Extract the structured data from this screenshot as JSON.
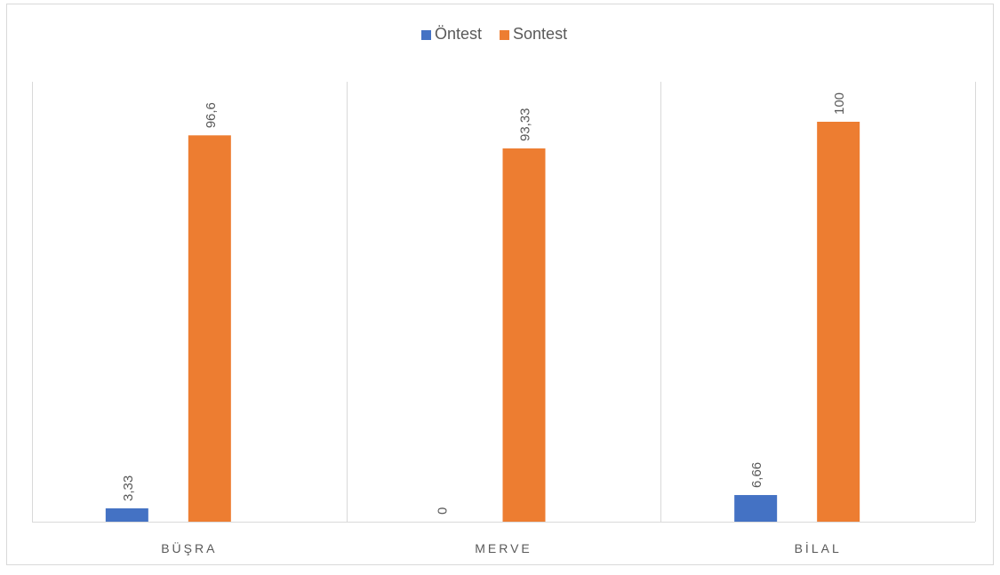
{
  "chart_data": {
    "type": "bar",
    "categories": [
      "BÜŞRA",
      "MERVE",
      "BİLAL"
    ],
    "series": [
      {
        "name": "Öntest",
        "values": [
          3.33,
          0,
          6.66
        ],
        "labels": [
          "3,33",
          "0",
          "6,66"
        ],
        "color": "#4472C4"
      },
      {
        "name": "Sontest",
        "values": [
          96.6,
          93.33,
          100
        ],
        "labels": [
          "96,6",
          "93,33",
          "100"
        ],
        "color": "#ED7D31"
      }
    ],
    "ylim": [
      0,
      110
    ],
    "grid": false,
    "legend_position": "top-center",
    "axis_line_color": "#d9d9d9",
    "label_color": "#595959"
  }
}
